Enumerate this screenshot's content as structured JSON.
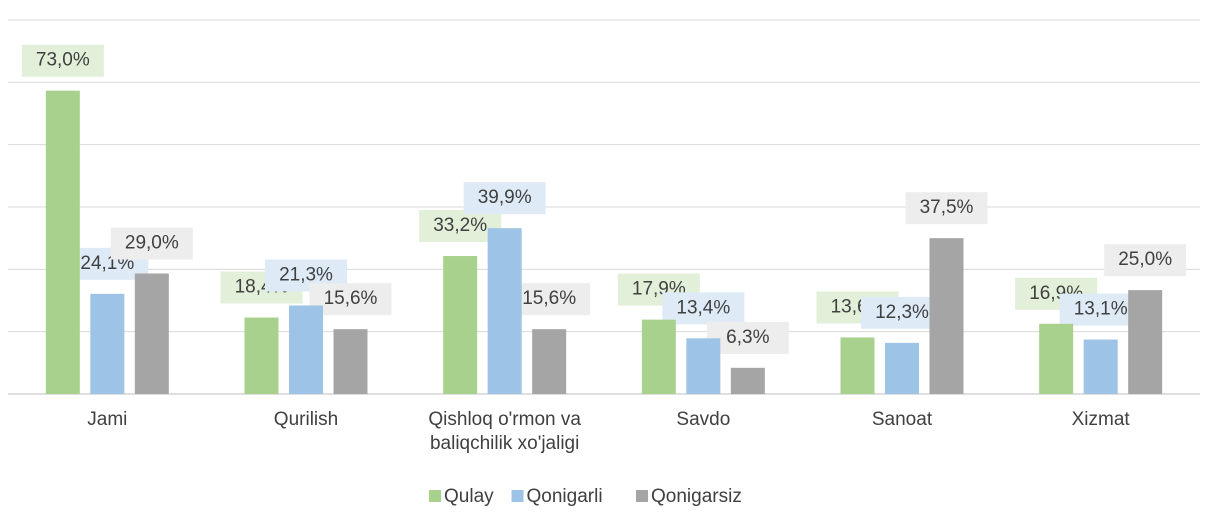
{
  "chart_data": {
    "type": "bar",
    "categories": [
      "Jami",
      "Qurilish",
      "Qishloq o'rmon va baliqchilik xo'jaligi",
      "Savdo",
      "Sanoat",
      "Xizmat"
    ],
    "series": [
      {
        "name": "Qulay",
        "color": "#a9d18e",
        "values": [
          73.0,
          18.4,
          33.2,
          17.9,
          13.6,
          16.9
        ],
        "value_labels": [
          "73,0%",
          "18,4%",
          "33,2%",
          "17,9%",
          "13,6%",
          "16,9%"
        ]
      },
      {
        "name": "Qonigarli",
        "color": "#9dc3e6",
        "values": [
          24.1,
          21.3,
          39.9,
          13.4,
          12.3,
          13.1
        ],
        "value_labels": [
          "24,1%",
          "21,3%",
          "39,9%",
          "13,4%",
          "12,3%",
          "13,1%"
        ]
      },
      {
        "name": "Qonigarsiz",
        "color": "#a5a5a5",
        "values": [
          29.0,
          15.6,
          15.6,
          6.3,
          37.5,
          25.0
        ],
        "value_labels": [
          "29,0%",
          "15,6%",
          "15,6%",
          "6,3%",
          "37,5%",
          "25,0%"
        ]
      }
    ],
    "ylim": [
      0,
      90
    ],
    "yticks": [
      0,
      15,
      30,
      45,
      60,
      75,
      90
    ],
    "grid": true,
    "legend": "bottom"
  }
}
